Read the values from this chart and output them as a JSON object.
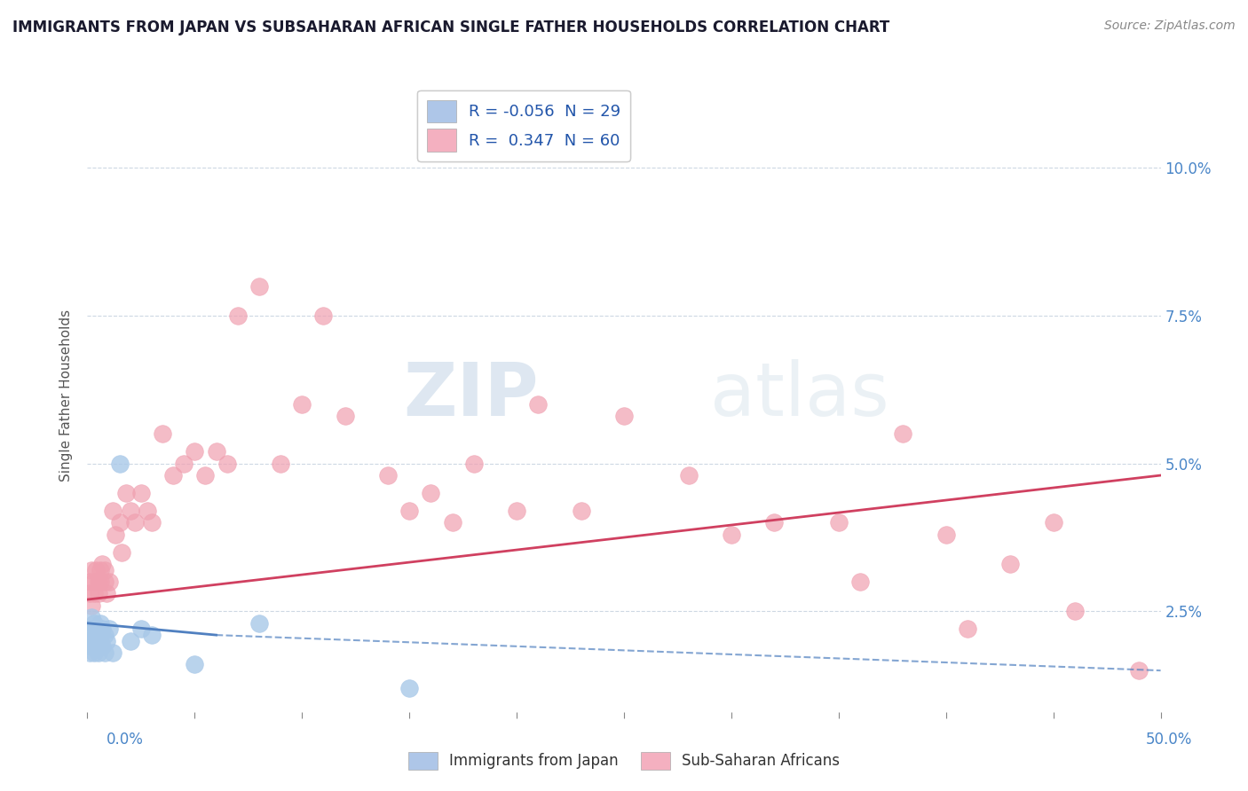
{
  "title": "IMMIGRANTS FROM JAPAN VS SUBSAHARAN AFRICAN SINGLE FATHER HOUSEHOLDS CORRELATION CHART",
  "source": "Source: ZipAtlas.com",
  "ylabel": "Single Father Households",
  "watermark_zip": "ZIP",
  "watermark_atlas": "atlas",
  "legend_r1": "R = -0.056  N = 29",
  "legend_r2": "R =  0.347  N = 60",
  "legend_label1": "Immigrants from Japan",
  "legend_label2": "Sub-Saharan Africans",
  "japan_scatter_color": "#a8c8e8",
  "africa_scatter_color": "#f0a0b0",
  "japan_line_color": "#5080c0",
  "africa_line_color": "#d04060",
  "japan_line_style": "solid_then_dashed",
  "xlim": [
    0.0,
    0.5
  ],
  "ylim": [
    0.008,
    0.115
  ],
  "yticks": [
    0.025,
    0.05,
    0.075,
    0.1
  ],
  "ytick_labels": [
    "2.5%",
    "5.0%",
    "7.5%",
    "10.0%"
  ],
  "xtick_bottom_left": "0.0%",
  "xtick_bottom_right": "50.0%",
  "japan_x": [
    0.001,
    0.001,
    0.001,
    0.002,
    0.002,
    0.002,
    0.003,
    0.003,
    0.003,
    0.004,
    0.004,
    0.005,
    0.005,
    0.006,
    0.006,
    0.007,
    0.007,
    0.008,
    0.008,
    0.009,
    0.01,
    0.012,
    0.015,
    0.02,
    0.025,
    0.03,
    0.05,
    0.08,
    0.15
  ],
  "japan_y": [
    0.022,
    0.02,
    0.018,
    0.024,
    0.021,
    0.019,
    0.023,
    0.02,
    0.018,
    0.022,
    0.019,
    0.021,
    0.018,
    0.023,
    0.02,
    0.022,
    0.019,
    0.021,
    0.018,
    0.02,
    0.022,
    0.018,
    0.05,
    0.02,
    0.022,
    0.021,
    0.016,
    0.023,
    0.012
  ],
  "africa_x": [
    0.001,
    0.001,
    0.002,
    0.002,
    0.003,
    0.003,
    0.004,
    0.005,
    0.005,
    0.006,
    0.006,
    0.007,
    0.008,
    0.008,
    0.009,
    0.01,
    0.012,
    0.013,
    0.015,
    0.016,
    0.018,
    0.02,
    0.022,
    0.025,
    0.028,
    0.03,
    0.035,
    0.04,
    0.045,
    0.05,
    0.055,
    0.06,
    0.065,
    0.07,
    0.08,
    0.09,
    0.1,
    0.11,
    0.12,
    0.14,
    0.15,
    0.16,
    0.17,
    0.18,
    0.2,
    0.21,
    0.23,
    0.25,
    0.28,
    0.3,
    0.32,
    0.35,
    0.36,
    0.38,
    0.4,
    0.41,
    0.43,
    0.45,
    0.46,
    0.49
  ],
  "africa_y": [
    0.03,
    0.028,
    0.026,
    0.032,
    0.028,
    0.03,
    0.032,
    0.028,
    0.03,
    0.032,
    0.03,
    0.033,
    0.03,
    0.032,
    0.028,
    0.03,
    0.042,
    0.038,
    0.04,
    0.035,
    0.045,
    0.042,
    0.04,
    0.045,
    0.042,
    0.04,
    0.055,
    0.048,
    0.05,
    0.052,
    0.048,
    0.052,
    0.05,
    0.075,
    0.08,
    0.05,
    0.06,
    0.075,
    0.058,
    0.048,
    0.042,
    0.045,
    0.04,
    0.05,
    0.042,
    0.06,
    0.042,
    0.058,
    0.048,
    0.038,
    0.04,
    0.04,
    0.03,
    0.055,
    0.038,
    0.022,
    0.033,
    0.04,
    0.025,
    0.015
  ],
  "japan_trend_x": [
    0.0,
    0.06,
    0.5
  ],
  "japan_trend_y": [
    0.023,
    0.021,
    0.015
  ],
  "africa_trend_x": [
    0.0,
    0.5
  ],
  "africa_trend_y": [
    0.027,
    0.048
  ],
  "background_color": "#ffffff",
  "grid_color": "#c8d4e0",
  "title_color": "#1a1a2e",
  "tick_color": "#4a86c8",
  "ylabel_color": "#555555"
}
